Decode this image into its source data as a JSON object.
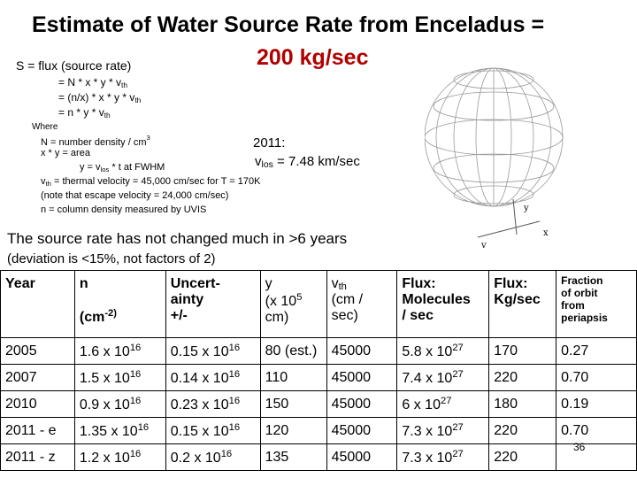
{
  "title": {
    "line1": "Estimate of Water Source Rate from Enceladus =",
    "line2": "200 kg/sec"
  },
  "equations": {
    "s_label": "S = flux (source rate)",
    "eq1": "= N * x * y * v",
    "eq2": "= (n/x) * x * y * v",
    "eq3": "= n * y * v",
    "sub_th": "th",
    "where": "Where",
    "def_N": "N = number density / cm",
    "def_N_sup": "3",
    "def_xy": "x * y = area",
    "def_y": "y = v",
    "def_y_sub": "los",
    "def_y_tail": " * t at FWHM",
    "def_vth_sub": "th",
    "def_vth": " = thermal velocity = 45,000 cm/sec for T = 170K",
    "def_esc": "(note that escape velocity = 24,000 cm/sec)",
    "def_n": "n = column density measured by UVIS"
  },
  "year_2011": "2011:",
  "vlos": {
    "v": "v",
    "sub": "los",
    "tail": " = 7.48 km/sec"
  },
  "figure_labels": {
    "y": "y",
    "x": "x",
    "v": "v"
  },
  "notes": {
    "line1": "The source rate has not changed much in >6 years",
    "line2": "(deviation is <15%, not factors of 2)"
  },
  "table": {
    "headers": {
      "year": "Year",
      "n": "n",
      "n_unit": "(cm",
      "n_sup": "-2)",
      "unc1": "Uncert-",
      "unc2": "ainty",
      "unc3": "+/-",
      "y": "y",
      "y_unit": "(x 10",
      "y_sup": "5",
      "y_cm": "cm)",
      "vth": "v",
      "vth_sub": "th",
      "vth_unit": "(cm /",
      "vth_sec": "sec)",
      "flux_mol1": "Flux:",
      "flux_mol2": "Molecules",
      "flux_mol3": "/ sec",
      "flux_kg1": "Flux:",
      "flux_kg2": "Kg/sec",
      "frac1": "Fraction",
      "frac2": "of orbit",
      "frac3": "from",
      "frac4": "periapsis"
    },
    "rows": [
      {
        "year": "2005",
        "n": "1.6 x 10",
        "n_exp": "16",
        "unc": "0.15 x 10",
        "unc_exp": "16",
        "y": "80 (est.)",
        "vth": "45000",
        "flux_mol": "5.8 x 10",
        "flux_mol_exp": "27",
        "flux_kg": "170",
        "frac": "0.27"
      },
      {
        "year": "2007",
        "n": "1.5 x 10",
        "n_exp": "16",
        "unc": "0.14 x 10",
        "unc_exp": "16",
        "y": "110",
        "vth": "45000",
        "flux_mol": "7.4 x 10",
        "flux_mol_exp": "27",
        "flux_kg": "220",
        "frac": "0.70"
      },
      {
        "year": "2010",
        "n": "0.9 x 10",
        "n_exp": "16",
        "unc": "0.23 x 10",
        "unc_exp": "16",
        "y": "150",
        "vth": "45000",
        "flux_mol": "6 x 10",
        "flux_mol_exp": "27",
        "flux_kg": "180",
        "frac": "0.19"
      },
      {
        "year": "2011 - e",
        "n": "1.35 x 10",
        "n_exp": "16",
        "unc": "0.15 x 10",
        "unc_exp": "16",
        "y": "120",
        "vth": "45000",
        "flux_mol": "7.3 x 10",
        "flux_mol_exp": "27",
        "flux_kg": "220",
        "frac": "0.70"
      },
      {
        "year": "2011 - z",
        "n": "1.2 x 10",
        "n_exp": "16",
        "unc": "0.2 x 10",
        "unc_exp": "16",
        "y": "135",
        "vth": "45000",
        "flux_mol": "7.3 x 10",
        "flux_mol_exp": "27",
        "flux_kg": "220",
        "frac": ""
      }
    ]
  },
  "page_number": "36"
}
